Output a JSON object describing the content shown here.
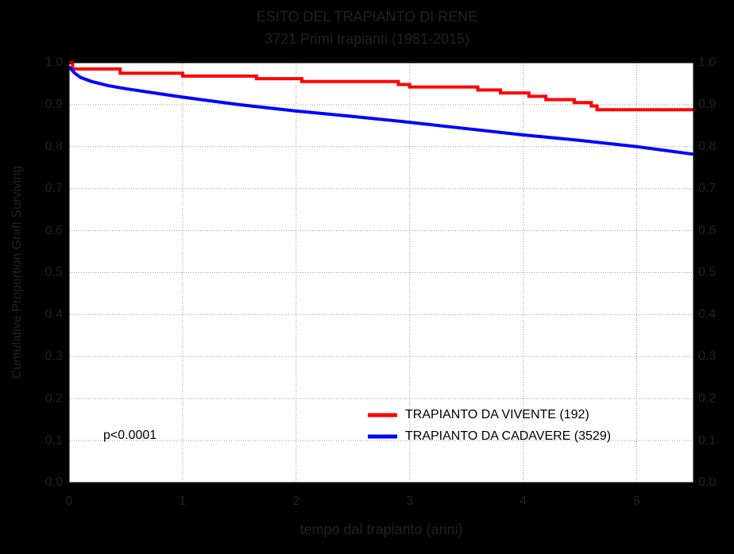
{
  "chart_data": {
    "type": "line",
    "title": "ESITO DEL TRAPIANTO DI RENE",
    "subtitle": "3721 Primi trapianti (1981-2015)",
    "x_label": "tempo dal trapianto (anni)",
    "y_label": "Cumulative Proportion Graft Surviving",
    "annotation": "p<0.0001",
    "xlim": [
      0,
      5.5
    ],
    "ylim": [
      0,
      1
    ],
    "xticks": [
      0,
      1,
      2,
      3,
      4,
      5
    ],
    "yticks": [
      {
        "value": 0,
        "label": "0.0"
      },
      {
        "value": 0.1,
        "label": "0.1"
      },
      {
        "value": 0.2,
        "label": "0.2"
      },
      {
        "value": 0.3,
        "label": "0.3"
      },
      {
        "value": 0.4,
        "label": "0.4"
      },
      {
        "value": 0.5,
        "label": "0.5"
      },
      {
        "value": 0.6,
        "label": "0.6"
      },
      {
        "value": 0.7,
        "label": "0.7"
      },
      {
        "value": 0.8,
        "label": "0.8"
      },
      {
        "value": 0.9,
        "label": "0.9"
      },
      {
        "value": 1,
        "label": "1.0"
      }
    ],
    "grid": true,
    "legend": "lower right",
    "series": [
      {
        "name": "TRAPIANTO DA VIVENTE (192)",
        "color": "#ff0000",
        "step": true,
        "x": [
          0,
          0.03,
          0.45,
          1.0,
          1.65,
          2.05,
          2.9,
          3.0,
          3.6,
          3.8,
          4.05,
          4.2,
          4.45,
          4.6,
          4.65,
          5.5
        ],
        "values": [
          1.0,
          0.985,
          0.975,
          0.968,
          0.962,
          0.955,
          0.948,
          0.942,
          0.935,
          0.928,
          0.92,
          0.912,
          0.905,
          0.897,
          0.888,
          0.888
        ]
      },
      {
        "name": "TRAPIANTO DA CADAVERE (3529)",
        "color": "#0000ff",
        "step": false,
        "x": [
          0,
          0.05,
          0.1,
          0.2,
          0.35,
          0.5,
          0.75,
          1.0,
          1.5,
          2.0,
          2.5,
          3.0,
          3.5,
          4.0,
          4.5,
          5.0,
          5.5
        ],
        "values": [
          0.99,
          0.975,
          0.965,
          0.955,
          0.945,
          0.938,
          0.928,
          0.918,
          0.9,
          0.885,
          0.872,
          0.858,
          0.843,
          0.828,
          0.815,
          0.8,
          0.782
        ]
      }
    ]
  }
}
